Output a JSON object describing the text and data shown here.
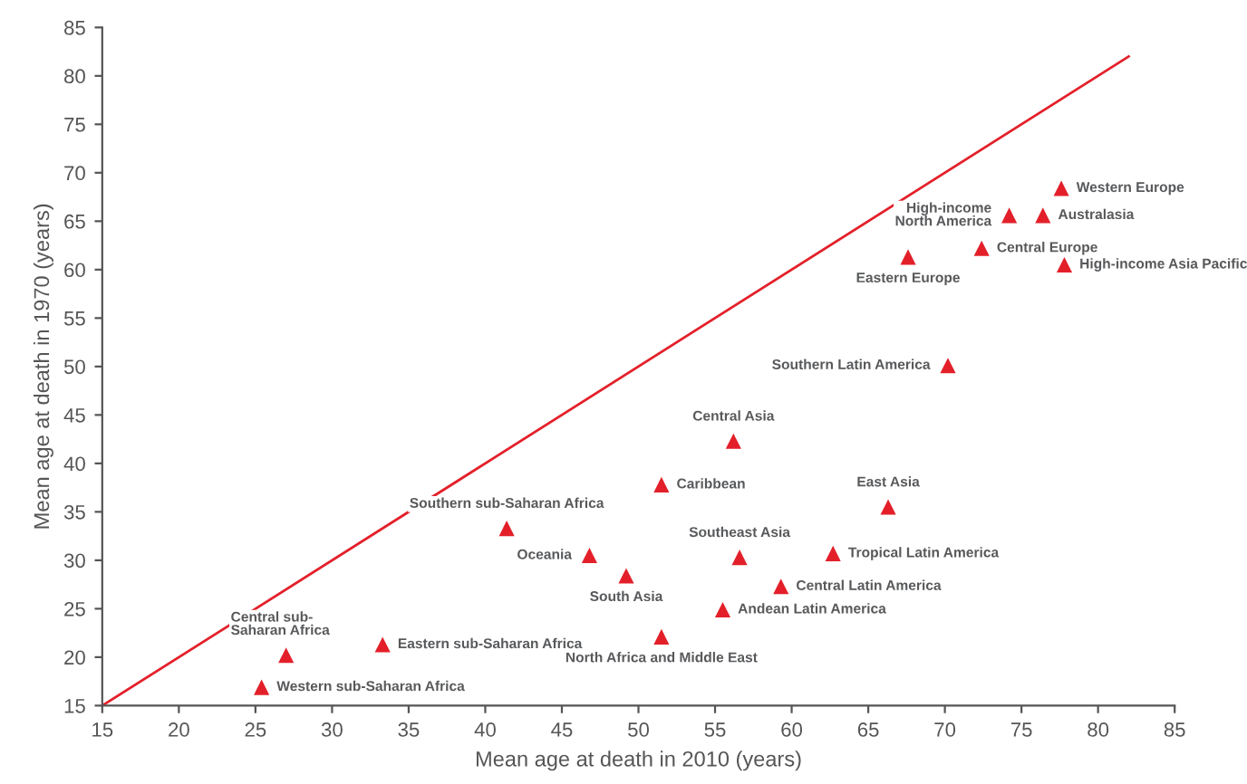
{
  "chart_data": {
    "type": "scatter",
    "xlabel": "Mean age at death in 2010 (years)",
    "ylabel": "Mean age at death in 1970 (years)",
    "xlim": [
      15,
      85
    ],
    "ylim": [
      15,
      85
    ],
    "xticks": [
      15,
      20,
      25,
      30,
      35,
      40,
      45,
      50,
      55,
      60,
      65,
      70,
      75,
      80,
      85
    ],
    "yticks": [
      15,
      20,
      25,
      30,
      35,
      40,
      45,
      50,
      55,
      60,
      65,
      70,
      75,
      80,
      85
    ],
    "grid": false,
    "legend": false,
    "series": [
      {
        "type": "line",
        "color": "#e3202a",
        "marker": "none",
        "line_style": "solid",
        "x": [
          15,
          82
        ],
        "values": [
          15,
          82
        ]
      },
      {
        "color": "#e3202a",
        "marker": "triangle",
        "x": [
          77.6,
          76.4,
          74.2,
          72.4,
          67.6,
          77.8,
          70.2,
          56.2,
          51.5,
          66.3,
          41.4,
          46.8,
          56.6,
          62.7,
          49.2,
          59.3,
          55.5,
          51.5,
          33.3,
          27.0,
          25.4
        ],
        "values": [
          68.4,
          65.6,
          65.6,
          62.2,
          61.3,
          60.5,
          50.1,
          42.3,
          37.8,
          35.5,
          33.3,
          30.5,
          30.3,
          30.7,
          28.4,
          27.3,
          24.9,
          22.1,
          21.3,
          20.2,
          16.9
        ]
      }
    ],
    "annotations": [
      {
        "text": "Western Europe",
        "x": 77.6,
        "y": 68.4
      },
      {
        "text": "Australasia",
        "x": 76.4,
        "y": 65.6
      },
      {
        "text": "High-income\nNorth America",
        "x": 74.2,
        "y": 65.6
      },
      {
        "text": "Central Europe",
        "x": 72.4,
        "y": 62.2
      },
      {
        "text": "Eastern Europe",
        "x": 67.6,
        "y": 61.3
      },
      {
        "text": "High-income Asia Pacific",
        "x": 77.8,
        "y": 60.5
      },
      {
        "text": "Southern Latin America",
        "x": 70.2,
        "y": 50.1
      },
      {
        "text": "Central Asia",
        "x": 56.2,
        "y": 42.3
      },
      {
        "text": "Caribbean",
        "x": 51.5,
        "y": 37.8
      },
      {
        "text": "East Asia",
        "x": 66.3,
        "y": 35.5
      },
      {
        "text": "Southern sub-Saharan Africa",
        "x": 41.4,
        "y": 33.3
      },
      {
        "text": "Oceania",
        "x": 46.8,
        "y": 30.5
      },
      {
        "text": "Southeast Asia",
        "x": 56.6,
        "y": 30.3
      },
      {
        "text": "Tropical Latin America",
        "x": 62.7,
        "y": 30.7
      },
      {
        "text": "South Asia",
        "x": 49.2,
        "y": 28.4
      },
      {
        "text": "Central Latin America",
        "x": 59.3,
        "y": 27.3
      },
      {
        "text": "Andean Latin America",
        "x": 55.5,
        "y": 24.9
      },
      {
        "text": "North Africa and Middle East",
        "x": 51.5,
        "y": 22.1
      },
      {
        "text": "Eastern sub-Saharan Africa",
        "x": 33.3,
        "y": 21.3
      },
      {
        "text": "Central sub-\nSaharan Africa",
        "x": 27.0,
        "y": 20.2
      },
      {
        "text": "Western sub-Saharan Africa",
        "x": 25.4,
        "y": 16.9
      }
    ]
  }
}
